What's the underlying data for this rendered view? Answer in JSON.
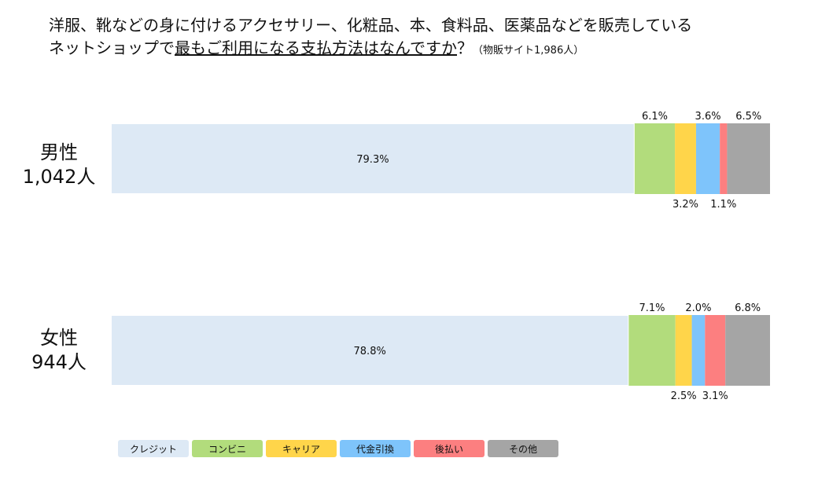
{
  "title": {
    "line1": "洋服、靴などの身に付けるアクセサリー、化粧品、本、食料品、医薬品などを販売している",
    "line2_pre": "ネットショップで",
    "line2_underlined": "最もご利用になる支払方法はなんですか",
    "line2_post": "？",
    "line2_sub": "（物販サイト1,986人）"
  },
  "chart_data": {
    "type": "bar",
    "orientation": "horizontal",
    "stacked": true,
    "percent": true,
    "categories": [
      "男性",
      "女性"
    ],
    "category_counts": [
      "1,042人",
      "944人"
    ],
    "series": [
      {
        "name": "クレジット",
        "values": [
          79.3,
          78.8
        ],
        "labels": [
          "79.3%",
          "78.8%"
        ],
        "color": "#dde9f5"
      },
      {
        "name": "コンビニ",
        "values": [
          6.1,
          7.1
        ],
        "labels": [
          "6.1%",
          "7.1%"
        ],
        "color": "#b2dc7c"
      },
      {
        "name": "キャリア",
        "values": [
          3.2,
          2.5
        ],
        "labels": [
          "3.2%",
          "2.5%"
        ],
        "color": "#ffd54a"
      },
      {
        "name": "代金引換",
        "values": [
          3.6,
          2.0
        ],
        "labels": [
          "3.6%",
          "2.0%"
        ],
        "color": "#7ec4fb"
      },
      {
        "name": "後払い",
        "values": [
          1.1,
          3.1
        ],
        "labels": [
          "1.1%",
          "3.1%"
        ],
        "color": "#fc7f80"
      },
      {
        "name": "その他",
        "values": [
          6.5,
          6.8
        ],
        "labels": [
          "6.5%",
          "6.8%"
        ],
        "color": "#a5a5a5"
      }
    ],
    "legend_position": "bottom-left"
  }
}
